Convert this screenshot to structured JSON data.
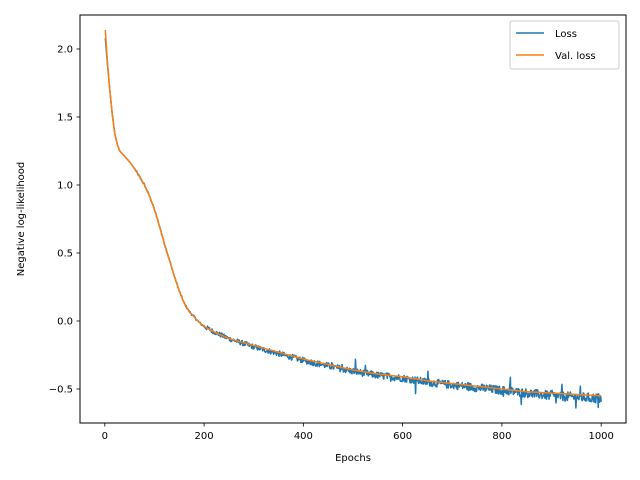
{
  "chart_data": {
    "type": "line",
    "xlabel": "Epochs",
    "ylabel": "Negative log-likelihood",
    "xlim": [
      -50,
      1050
    ],
    "ylim": [
      -0.75,
      2.25
    ],
    "xticks": [
      0,
      200,
      400,
      600,
      800,
      1000
    ],
    "yticks": [
      -0.5,
      0.0,
      0.5,
      1.0,
      1.5,
      2.0
    ],
    "xtick_labels": [
      "0",
      "200",
      "400",
      "600",
      "800",
      "1000"
    ],
    "ytick_labels": [
      "−0.5",
      "0.0",
      "0.5",
      "1.0",
      "1.5",
      "2.0"
    ],
    "legend_position": "top-right",
    "grid": false,
    "series": [
      {
        "name": "Loss",
        "color": "#1f77b4",
        "noisy": true,
        "x": [
          1,
          5,
          10,
          15,
          20,
          25,
          30,
          40,
          50,
          60,
          70,
          80,
          90,
          100,
          110,
          120,
          130,
          140,
          150,
          160,
          170,
          180,
          190,
          200,
          220,
          250,
          300,
          350,
          400,
          450,
          500,
          550,
          600,
          650,
          700,
          750,
          800,
          850,
          900,
          950,
          1000
        ],
        "y": [
          2.08,
          1.9,
          1.7,
          1.52,
          1.38,
          1.3,
          1.25,
          1.21,
          1.17,
          1.12,
          1.06,
          1.0,
          0.92,
          0.82,
          0.7,
          0.57,
          0.45,
          0.33,
          0.22,
          0.13,
          0.07,
          0.03,
          -0.01,
          -0.04,
          -0.08,
          -0.13,
          -0.19,
          -0.24,
          -0.29,
          -0.33,
          -0.37,
          -0.4,
          -0.42,
          -0.45,
          -0.47,
          -0.49,
          -0.51,
          -0.53,
          -0.55,
          -0.56,
          -0.57
        ]
      },
      {
        "name": "Val. loss",
        "color": "#ff7f0e",
        "noisy": false,
        "x": [
          1,
          5,
          10,
          15,
          20,
          25,
          30,
          40,
          50,
          60,
          70,
          80,
          90,
          100,
          110,
          120,
          130,
          140,
          150,
          160,
          170,
          180,
          190,
          200,
          220,
          250,
          300,
          350,
          400,
          450,
          500,
          550,
          600,
          650,
          700,
          750,
          800,
          850,
          900,
          950,
          1000
        ],
        "y": [
          2.14,
          1.92,
          1.7,
          1.52,
          1.38,
          1.3,
          1.25,
          1.21,
          1.17,
          1.12,
          1.06,
          1.0,
          0.92,
          0.82,
          0.7,
          0.57,
          0.45,
          0.33,
          0.22,
          0.13,
          0.07,
          0.03,
          -0.01,
          -0.04,
          -0.08,
          -0.13,
          -0.18,
          -0.23,
          -0.28,
          -0.32,
          -0.36,
          -0.39,
          -0.41,
          -0.44,
          -0.46,
          -0.48,
          -0.5,
          -0.52,
          -0.53,
          -0.54,
          -0.55
        ]
      }
    ]
  }
}
